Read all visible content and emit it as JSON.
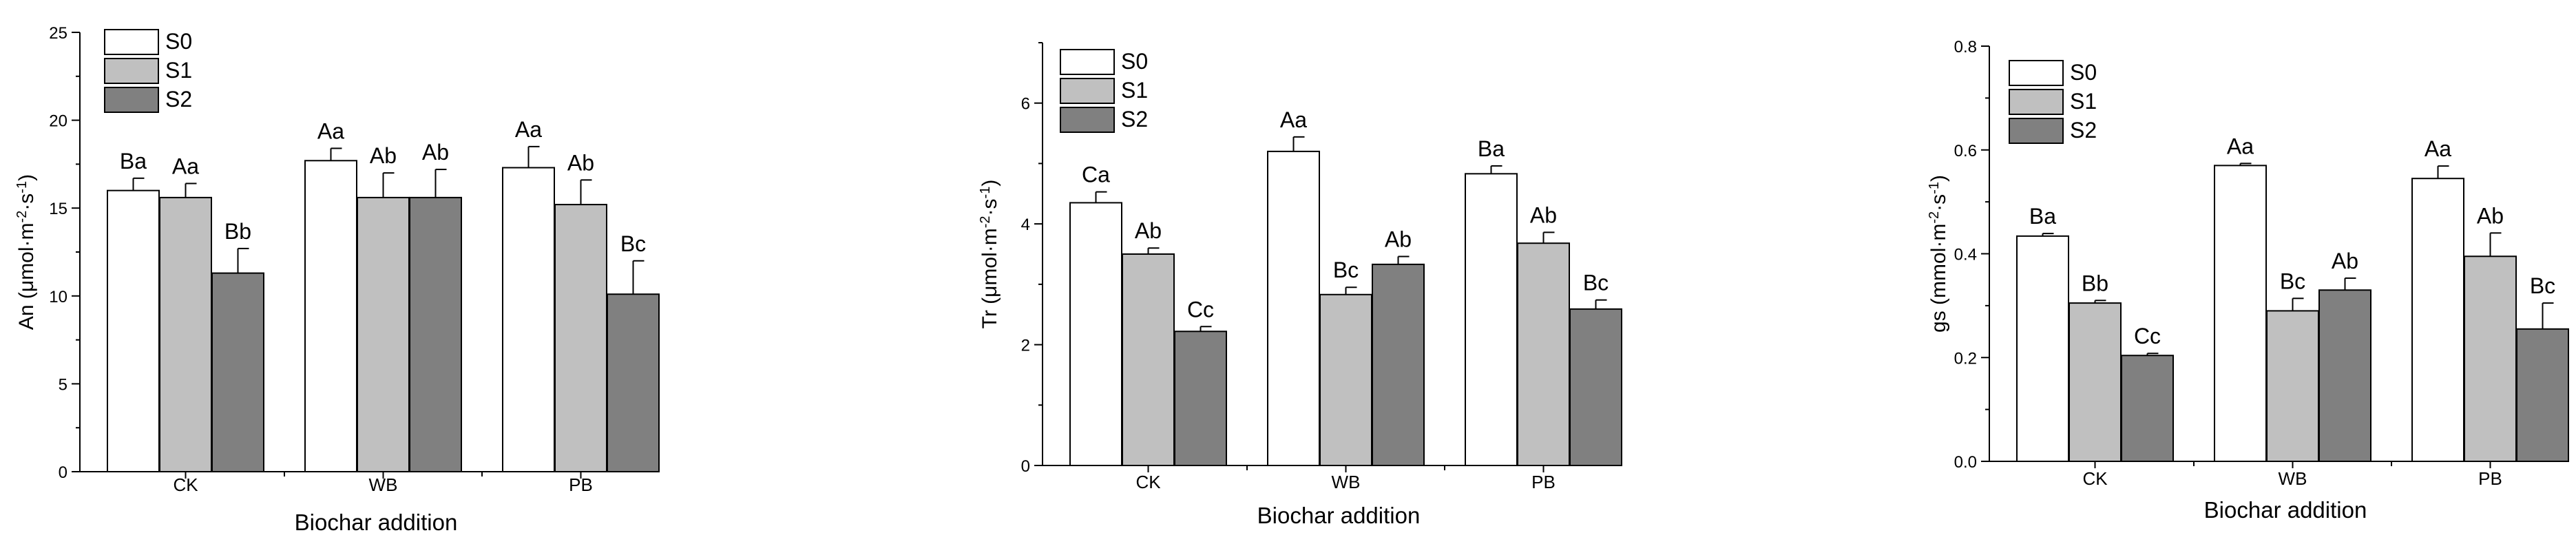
{
  "colors": {
    "S0": "#ffffff",
    "S1": "#c0c0c0",
    "S2": "#808080",
    "axis": "#000000"
  },
  "chart_data": [
    {
      "type": "bar",
      "xlabel": "Biochar addition",
      "ylabel_main": "An (μmol·m",
      "ylabel_sup1": "-2",
      "ylabel_mid": "·s",
      "ylabel_sup2": "-1",
      "ylabel_end": ")",
      "ylim": [
        0,
        25
      ],
      "yticks": [
        0,
        5,
        10,
        15,
        20,
        25
      ],
      "ytick_labels": [
        "0",
        "5",
        "10",
        "15",
        "20",
        "25"
      ],
      "categories": [
        "CK",
        "WB",
        "PB"
      ],
      "legend": [
        "S0",
        "S1",
        "S2"
      ],
      "series": [
        {
          "name": "S0",
          "values": [
            16.0,
            17.7,
            17.3
          ],
          "errors": [
            0.7,
            0.7,
            1.2
          ],
          "letters": [
            "Ba",
            "Aa",
            "Aa"
          ]
        },
        {
          "name": "S1",
          "values": [
            15.6,
            15.6,
            15.2
          ],
          "errors": [
            0.8,
            1.4,
            1.4
          ],
          "letters": [
            "Aa",
            "Ab",
            "Ab"
          ]
        },
        {
          "name": "S2",
          "values": [
            11.3,
            15.6,
            10.1
          ],
          "errors": [
            1.4,
            1.6,
            1.9
          ],
          "letters": [
            "Bb",
            "Ab",
            "Bc"
          ]
        }
      ]
    },
    {
      "type": "bar",
      "xlabel": "Biochar addition",
      "ylabel_main": "Tr (μmol·m",
      "ylabel_sup1": "-2",
      "ylabel_mid": "·s",
      "ylabel_sup2": "-1",
      "ylabel_end": ")",
      "ylim": [
        0,
        7
      ],
      "yticks": [
        0,
        2,
        4,
        6
      ],
      "ytick_labels": [
        "0",
        "2",
        "4",
        "6"
      ],
      "categories": [
        "CK",
        "WB",
        "PB"
      ],
      "legend": [
        "S0",
        "S1",
        "S2"
      ],
      "series": [
        {
          "name": "S0",
          "values": [
            4.35,
            5.2,
            4.83
          ],
          "errors": [
            0.18,
            0.24,
            0.13
          ],
          "letters": [
            "Ca",
            "Aa",
            "Ba"
          ]
        },
        {
          "name": "S1",
          "values": [
            3.5,
            2.83,
            3.68
          ],
          "errors": [
            0.1,
            0.12,
            0.18
          ],
          "letters": [
            "Ab",
            "Bc",
            "Ab"
          ]
        },
        {
          "name": "S2",
          "values": [
            2.22,
            3.33,
            2.59
          ],
          "errors": [
            0.08,
            0.13,
            0.15
          ],
          "letters": [
            "Cc",
            "Ab",
            "Bc"
          ]
        }
      ]
    },
    {
      "type": "bar",
      "xlabel": "Biochar addition",
      "ylabel_main": "gs (mmol·m",
      "ylabel_sup1": "-2",
      "ylabel_mid": "·s",
      "ylabel_sup2": "-1",
      "ylabel_end": ")",
      "ylim": [
        0,
        0.8
      ],
      "yticks": [
        0,
        0.2,
        0.4,
        0.6,
        0.8
      ],
      "ytick_labels": [
        "0.0",
        "0.2",
        "0.4",
        "0.6",
        "0.8"
      ],
      "categories": [
        "CK",
        "WB",
        "PB"
      ],
      "legend": [
        "S0",
        "S1",
        "S2"
      ],
      "series": [
        {
          "name": "S0",
          "values": [
            0.434,
            0.57,
            0.545
          ],
          "errors": [
            0.005,
            0.004,
            0.024
          ],
          "letters": [
            "Ba",
            "Aa",
            "Aa"
          ]
        },
        {
          "name": "S1",
          "values": [
            0.305,
            0.29,
            0.395
          ],
          "errors": [
            0.005,
            0.024,
            0.045
          ],
          "letters": [
            "Bb",
            "Bc",
            "Ab"
          ]
        },
        {
          "name": "S2",
          "values": [
            0.204,
            0.33,
            0.255
          ],
          "errors": [
            0.004,
            0.023,
            0.05
          ],
          "letters": [
            "Cc",
            "Ab",
            "Bc"
          ]
        }
      ]
    }
  ]
}
